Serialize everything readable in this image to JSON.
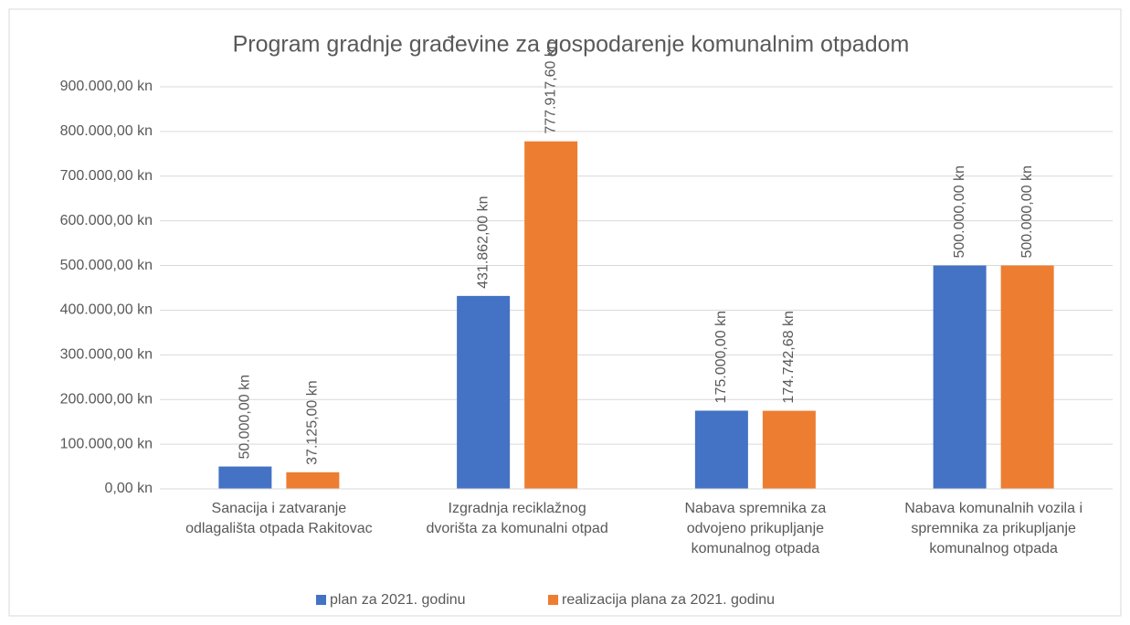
{
  "chart_data": {
    "type": "bar",
    "title": "Program gradnje građevine za gospodarenje komunalnim otpadom",
    "categories": [
      "Sanacija i zatvaranje\nodlagališta otpada Rakitovac",
      "Izgradnja reciklažnog\ndvorišta za komunalni otpad",
      "Nabava spremnika za\nodvojeno prikupljanje\nkomunalnog otpada",
      "Nabava komunalnih vozila i\nspremnika za prikupljanje\nkomunalnog otpada"
    ],
    "series": [
      {
        "name": "plan za 2021. godinu",
        "color": "#4472c4",
        "values": [
          50000,
          431862,
          175000,
          500000
        ],
        "value_labels": [
          "50.000,00 kn",
          "431.862,00 kn",
          "175.000,00 kn",
          "500.000,00 kn"
        ]
      },
      {
        "name": "realizacija plana za 2021. godinu",
        "color": "#ed7d31",
        "values": [
          37125,
          777917.6,
          174742.68,
          500000
        ],
        "value_labels": [
          "37.125,00 kn",
          "777.917,60 kn",
          "174.742,68 kn",
          "500.000,00 kn"
        ]
      }
    ],
    "ylim": [
      0,
      900000
    ],
    "yticks": [
      {
        "value": 0,
        "label": "0,00 kn"
      },
      {
        "value": 100000,
        "label": "100.000,00 kn"
      },
      {
        "value": 200000,
        "label": "200.000,00 kn"
      },
      {
        "value": 300000,
        "label": "300.000,00 kn"
      },
      {
        "value": 400000,
        "label": "400.000,00 kn"
      },
      {
        "value": 500000,
        "label": "500.000,00 kn"
      },
      {
        "value": 600000,
        "label": "600.000,00 kn"
      },
      {
        "value": 700000,
        "label": "700.000,00 kn"
      },
      {
        "value": 800000,
        "label": "800.000,00 kn"
      },
      {
        "value": 900000,
        "label": "900.000,00 kn"
      }
    ],
    "grid": true,
    "legend": "bottom"
  }
}
